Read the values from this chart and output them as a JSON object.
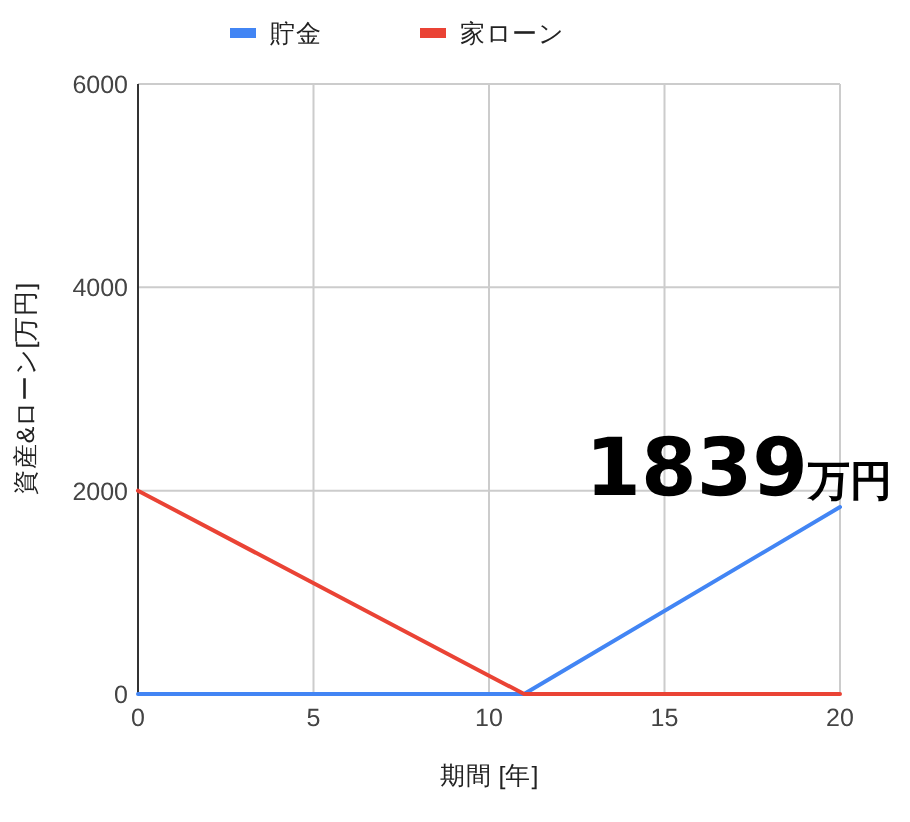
{
  "chart_data": {
    "type": "line",
    "xlabel": "期間 [年]",
    "ylabel": "資産&ローン[万円]",
    "xlim": [
      0,
      20
    ],
    "ylim": [
      0,
      6000
    ],
    "xticks": [
      0,
      5,
      10,
      15,
      20
    ],
    "yticks": [
      0,
      2000,
      4000,
      6000
    ],
    "grid": true,
    "legend": "top",
    "series": [
      {
        "name": "貯金",
        "color": "#4285f4",
        "x": [
          0,
          11,
          20
        ],
        "values": [
          0,
          0,
          1839
        ]
      },
      {
        "name": "家ローン",
        "color": "#ea4335",
        "x": [
          0,
          10,
          11,
          20
        ],
        "values": [
          2000,
          180,
          0,
          0
        ]
      }
    ],
    "annotations": [
      {
        "text": "1839万円",
        "x": 20,
        "y": 1839
      }
    ]
  }
}
